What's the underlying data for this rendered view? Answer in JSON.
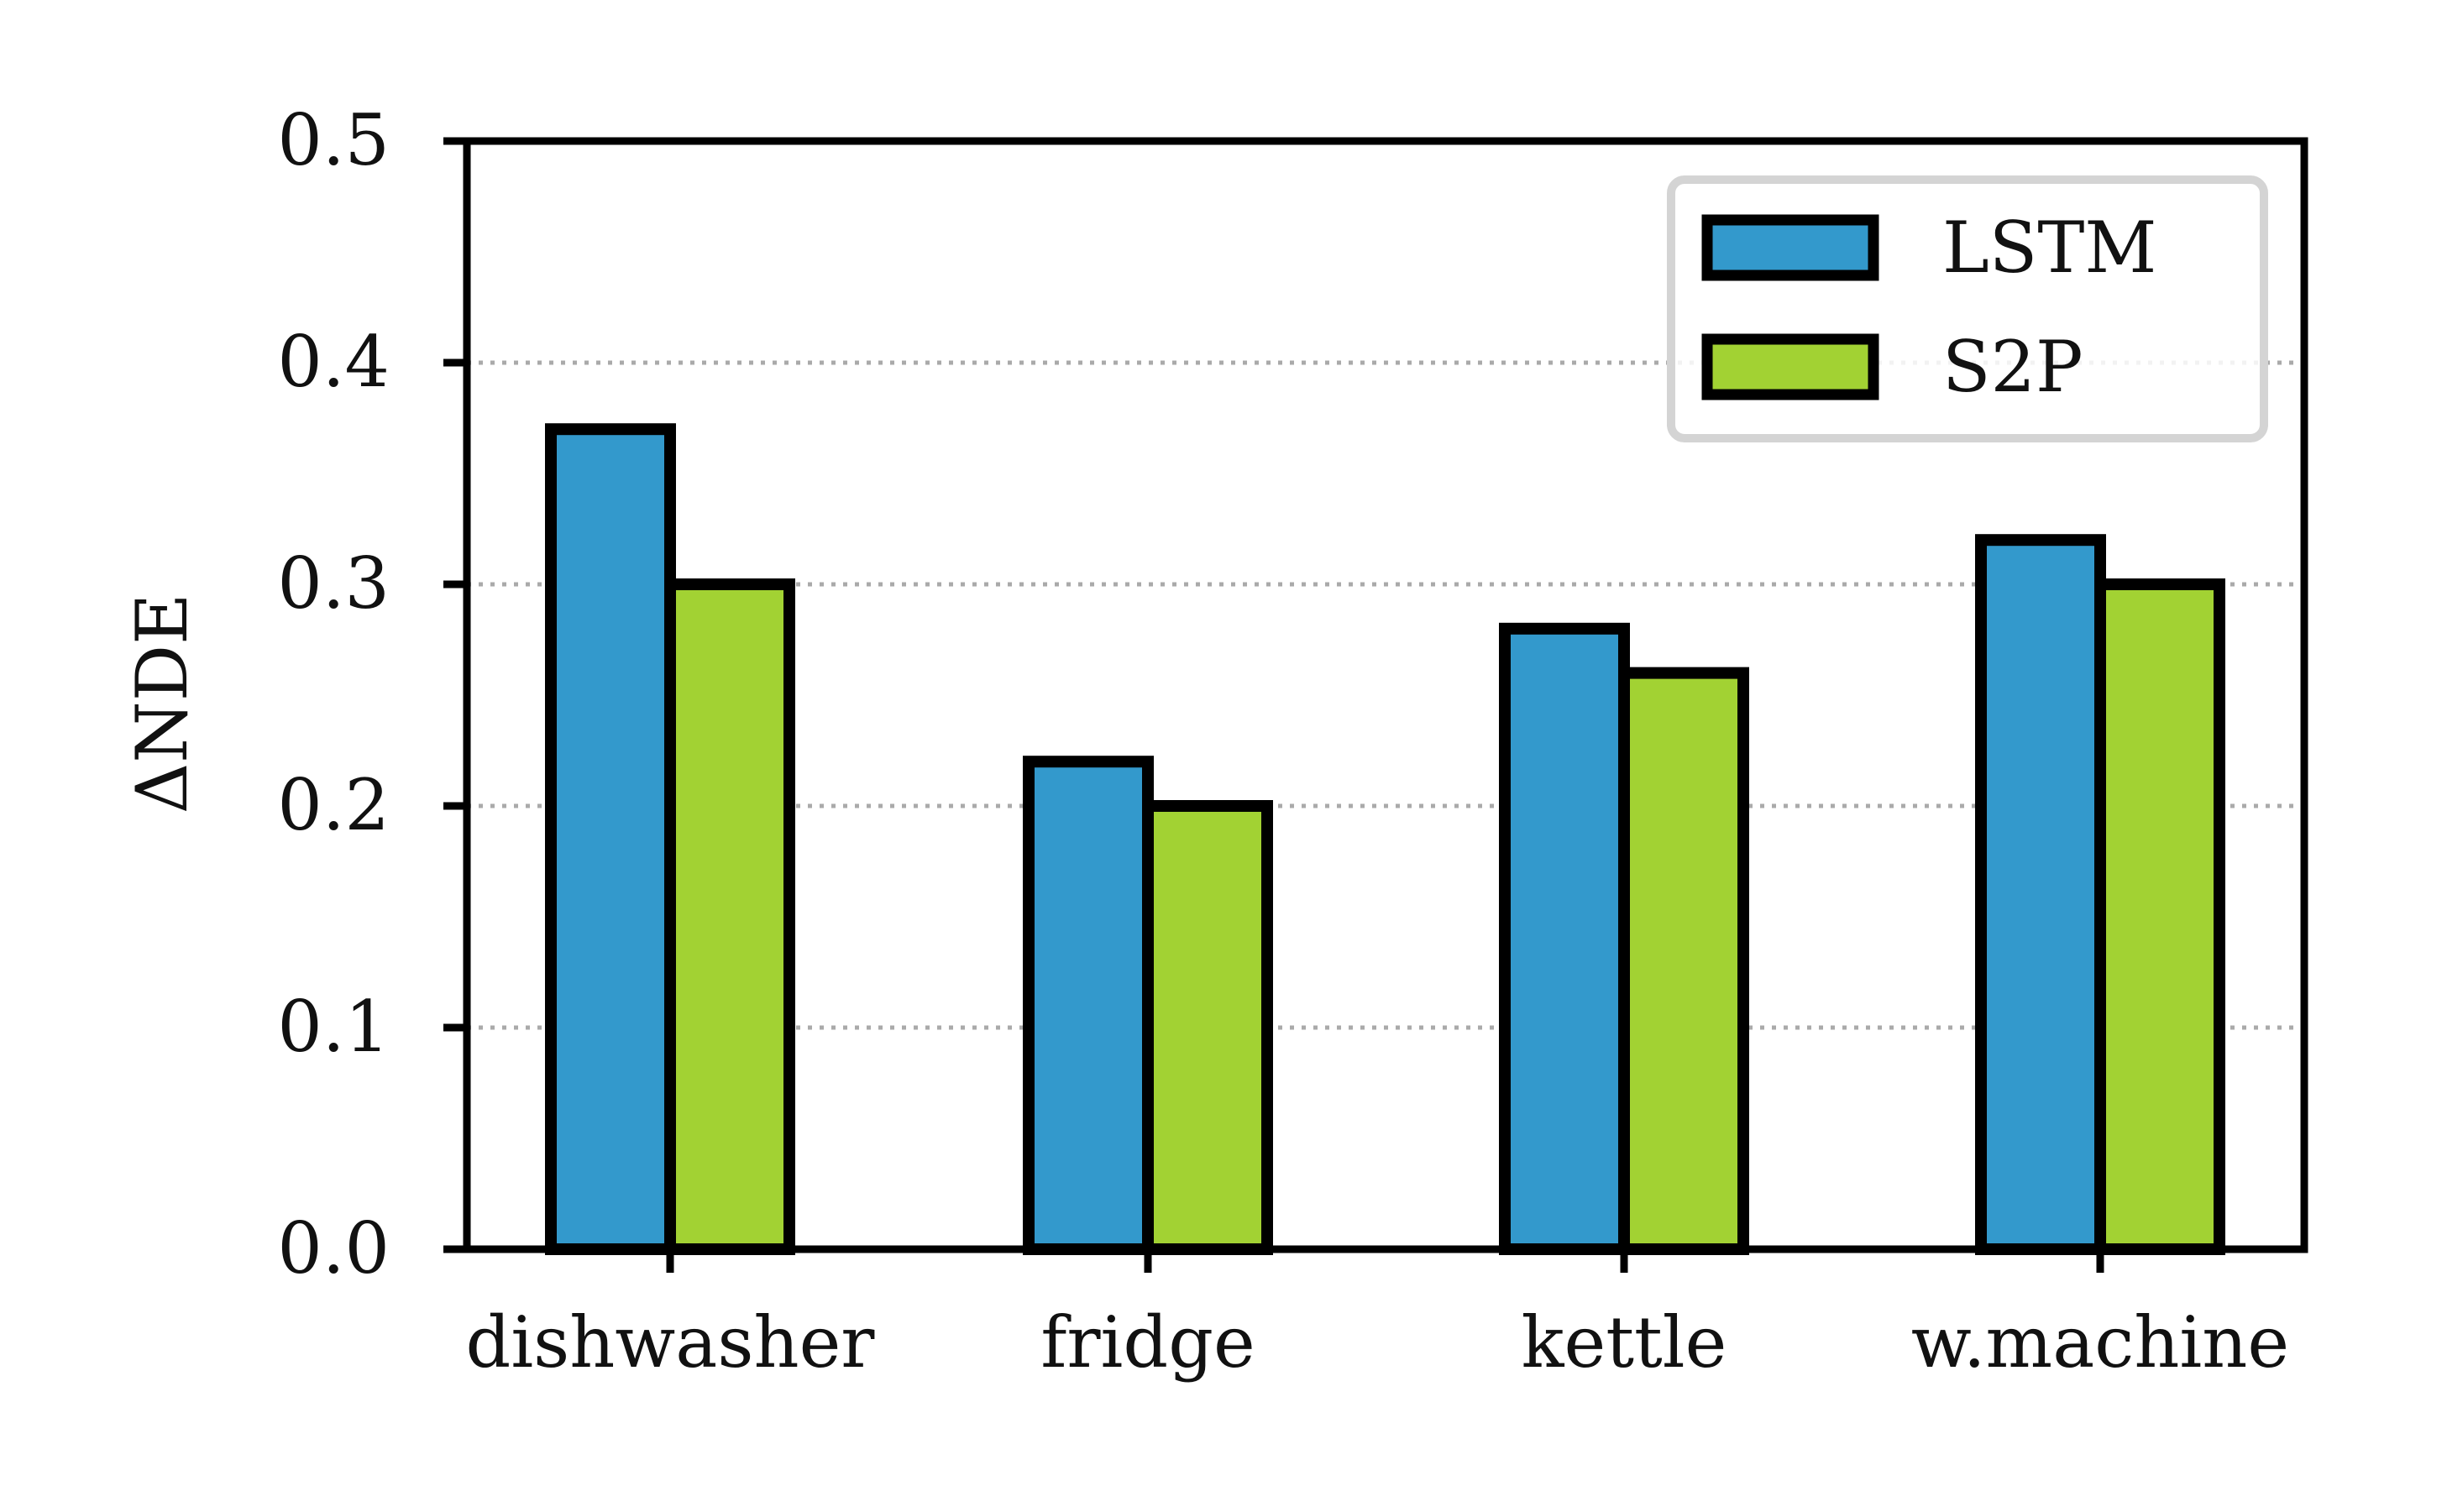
{
  "chart_data": {
    "type": "bar",
    "categories": [
      "dishwasher",
      "fridge",
      "kettle",
      "w.machine"
    ],
    "series": [
      {
        "name": "LSTM",
        "values": [
          0.37,
          0.22,
          0.28,
          0.32
        ]
      },
      {
        "name": "S2P",
        "values": [
          0.3,
          0.2,
          0.26,
          0.3
        ]
      }
    ],
    "title": "",
    "xlabel": "",
    "ylabel": "ΔNDE",
    "ylim": [
      0,
      0.5
    ],
    "yticks": [
      "0.0",
      "0.1",
      "0.2",
      "0.3",
      "0.4",
      "0.5"
    ],
    "grid": "horizontal dotted",
    "legend_position": "top-right",
    "colors": {
      "LSTM": "#3399cc",
      "S2P": "#a2d233",
      "edge": "#000000",
      "grid": "#aaaaaa"
    }
  }
}
